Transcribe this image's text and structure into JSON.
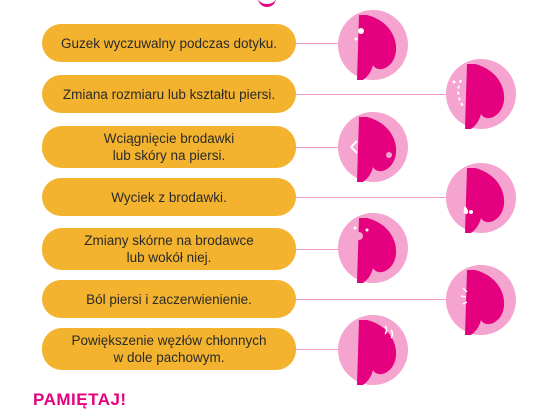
{
  "symptoms": [
    {
      "label": "Guzek wyczuwalny podczas dotyku."
    },
    {
      "label": "Zmiana rozmiaru lub kształtu piersi."
    },
    {
      "label": "Wciągnięcie brodawki\nlub skóry na piersi."
    },
    {
      "label": "Wyciek z brodawki."
    },
    {
      "label": "Zmiany skórne na brodawce\nlub wokół niej."
    },
    {
      "label": "Ból piersi i zaczerwienienie."
    },
    {
      "label": "Powiększenie węzłów chłonnych\nw dole pachowym."
    }
  ],
  "footer": {
    "text": "PAMIĘTAJ!"
  },
  "colors": {
    "pill": "#f3b32e",
    "circle_bg": "#f5a3cf",
    "breast": "#e4007e",
    "accent_text": "#e4007e"
  }
}
